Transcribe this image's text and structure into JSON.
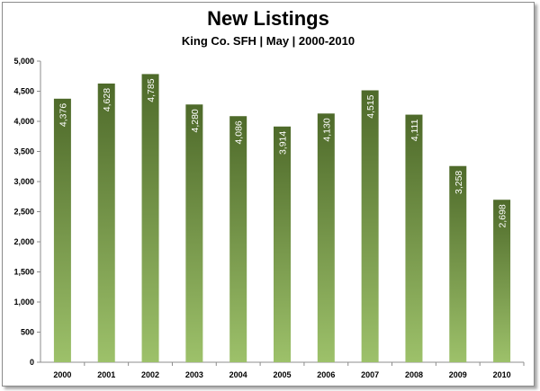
{
  "chart_data": {
    "type": "bar",
    "title": "New Listings",
    "subtitle": "King Co. SFH | May | 2000-2010",
    "categories": [
      "2000",
      "2001",
      "2002",
      "2003",
      "2004",
      "2005",
      "2006",
      "2007",
      "2008",
      "2009",
      "2010"
    ],
    "values": [
      4376,
      4628,
      4785,
      4280,
      4086,
      3914,
      4130,
      4515,
      4111,
      3258,
      2698
    ],
    "value_labels": [
      "4,376",
      "4,628",
      "4,785",
      "4,280",
      "4,086",
      "3,914",
      "4,130",
      "4,515",
      "4,111",
      "3,258",
      "2,698"
    ],
    "ylim": [
      0,
      5000
    ],
    "yticks": [
      0,
      500,
      1000,
      1500,
      2000,
      2500,
      3000,
      3500,
      4000,
      4500,
      5000
    ],
    "ytick_labels": [
      "0",
      "500",
      "1,000",
      "1,500",
      "2,000",
      "2,500",
      "3,000",
      "3,500",
      "4,000",
      "4,500",
      "5,000"
    ],
    "xlabel": "",
    "ylabel": "",
    "grid": false,
    "legend": "none",
    "colors": {
      "bar_top": "#4e6a2a",
      "bar_bottom": "#9dc16a",
      "axis": "#8c8c8c"
    }
  }
}
